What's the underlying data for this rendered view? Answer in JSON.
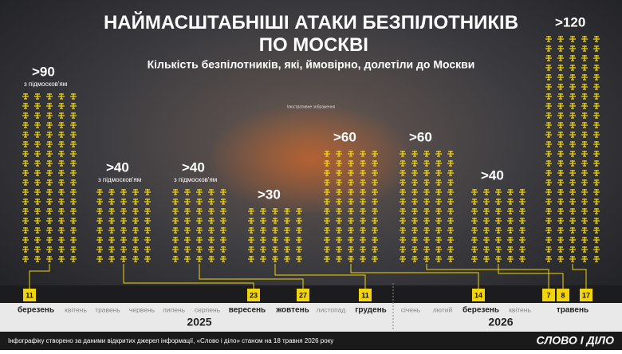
{
  "chart_data": {
    "type": "pictograph",
    "title": "НАЙМАСШТАБНІШІ АТАКИ БЕЗПІЛОТНИКІВ ПО МОСКВІ",
    "subtitle": "Кількість безпілотників, які, ймовірно, долетіли до Москви",
    "image_note": "Ілюстративне зображення",
    "color": "#f2d40c",
    "attacks": [
      {
        "value": 90,
        "value_label": ">90",
        "note": "з підмосков'ям",
        "day": "11"
      },
      {
        "value": 40,
        "value_label": ">40",
        "note": "з підмосков'ям",
        "day": "23"
      },
      {
        "value": 40,
        "value_label": ">40",
        "note": "з підмосков'ям",
        "day": "27"
      },
      {
        "value": 30,
        "value_label": ">30",
        "day": "11"
      },
      {
        "value": 60,
        "value_label": ">60",
        "day": "14"
      },
      {
        "value": 60,
        "value_label": ">60",
        "day": "7"
      },
      {
        "value": 40,
        "value_label": ">40",
        "day": "8"
      },
      {
        "value": 120,
        "value_label": ">120",
        "day": "17"
      }
    ],
    "months": [
      {
        "label": "березень",
        "highlight": true
      },
      {
        "label": "квітень",
        "highlight": false
      },
      {
        "label": "травень",
        "highlight": false
      },
      {
        "label": "червень",
        "highlight": false
      },
      {
        "label": "липень",
        "highlight": false
      },
      {
        "label": "серпень",
        "highlight": false
      },
      {
        "label": "вересень",
        "highlight": true
      },
      {
        "label": "жовтень",
        "highlight": true
      },
      {
        "label": "листопад",
        "highlight": false
      },
      {
        "label": "грудень",
        "highlight": true
      },
      {
        "label": "січень",
        "highlight": false
      },
      {
        "label": "лютий",
        "highlight": false
      },
      {
        "label": "березень",
        "highlight": true
      },
      {
        "label": "квітень",
        "highlight": false
      },
      {
        "label": "травень",
        "highlight": true
      }
    ],
    "years": [
      "2025",
      "2026"
    ],
    "footer": "Інфографіку створено за даними відкритих джерел інформації, «Слово і діло» станом на 18 травня 2026 року",
    "logo": "СЛОВО І ДІЛО"
  }
}
